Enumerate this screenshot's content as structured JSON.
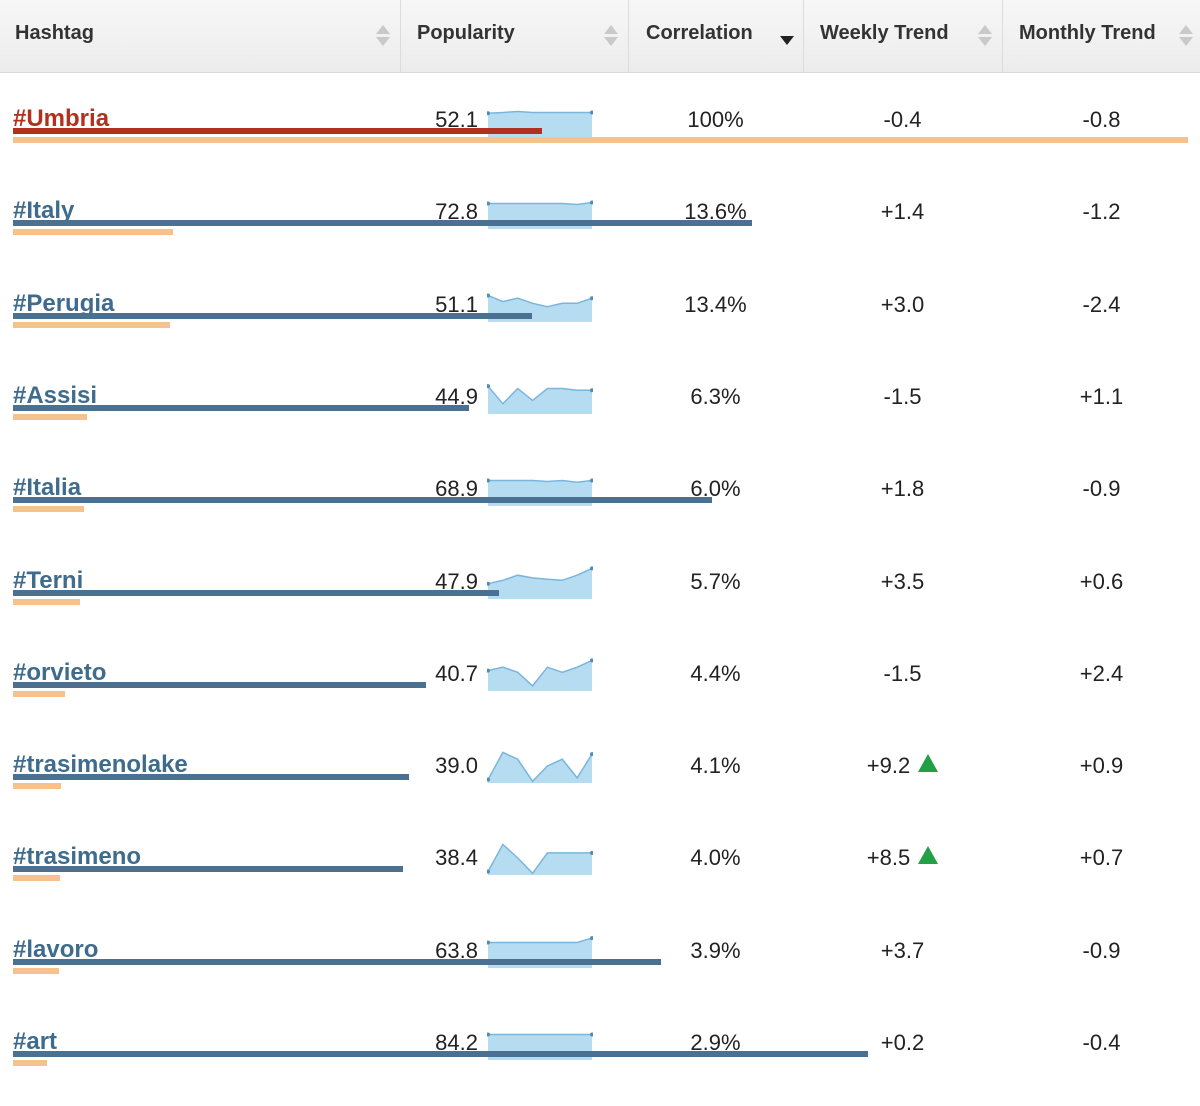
{
  "header": {
    "hashtag": "Hashtag",
    "popularity": "Popularity",
    "correlation": "Correlation",
    "weekly": "Weekly Trend",
    "monthly": "Monthly Trend"
  },
  "colors": {
    "primary_text": "#b0311d",
    "link_text": "#3f6b8c",
    "popularity_bar": "#4a7191",
    "correlation_bar": "#f5c18d",
    "spark_fill": "#b6dcf2",
    "spark_line": "#7ab6dc",
    "trend_up": "#23a045"
  },
  "rows": [
    {
      "hashtag": "#Umbria",
      "popularity": "52.1",
      "correlation": "100%",
      "weekly": "-0.4",
      "monthly": "-0.8",
      "pop_value": 52.1,
      "corr_value": 100,
      "weekly_up_icon": false,
      "primary": true,
      "spark": [
        0.3,
        0.28,
        0.25,
        0.28,
        0.28,
        0.28,
        0.28,
        0.28
      ]
    },
    {
      "hashtag": "#Italy",
      "popularity": "72.8",
      "correlation": "13.6%",
      "weekly": "+1.4",
      "monthly": "-1.2",
      "pop_value": 72.8,
      "corr_value": 13.6,
      "weekly_up_icon": false,
      "primary": false,
      "spark": [
        0.25,
        0.25,
        0.25,
        0.25,
        0.25,
        0.25,
        0.28,
        0.22
      ]
    },
    {
      "hashtag": "#Perugia",
      "popularity": "51.1",
      "correlation": "13.4%",
      "weekly": "+3.0",
      "monthly": "-2.4",
      "pop_value": 51.1,
      "corr_value": 13.4,
      "weekly_up_icon": false,
      "primary": false,
      "spark": [
        0.22,
        0.4,
        0.3,
        0.45,
        0.55,
        0.45,
        0.45,
        0.3
      ]
    },
    {
      "hashtag": "#Assisi",
      "popularity": "44.9",
      "correlation": "6.3%",
      "weekly": "-1.5",
      "monthly": "+1.1",
      "pop_value": 44.9,
      "corr_value": 6.3,
      "weekly_up_icon": false,
      "primary": false,
      "spark": [
        0.18,
        0.7,
        0.25,
        0.6,
        0.25,
        0.25,
        0.3,
        0.3
      ]
    },
    {
      "hashtag": "#Italia",
      "popularity": "68.9",
      "correlation": "6.0%",
      "weekly": "+1.8",
      "monthly": "-0.9",
      "pop_value": 68.9,
      "corr_value": 6.0,
      "weekly_up_icon": false,
      "primary": false,
      "spark": [
        0.25,
        0.25,
        0.25,
        0.25,
        0.28,
        0.25,
        0.3,
        0.25
      ]
    },
    {
      "hashtag": "#Terni",
      "popularity": "47.9",
      "correlation": "5.7%",
      "weekly": "+3.5",
      "monthly": "+0.6",
      "pop_value": 47.9,
      "corr_value": 5.7,
      "weekly_up_icon": false,
      "primary": false,
      "spark": [
        0.55,
        0.45,
        0.3,
        0.38,
        0.42,
        0.45,
        0.3,
        0.1
      ]
    },
    {
      "hashtag": "#orvieto",
      "popularity": "40.7",
      "correlation": "4.4%",
      "weekly": "-1.5",
      "monthly": "+2.4",
      "pop_value": 40.7,
      "corr_value": 4.4,
      "weekly_up_icon": false,
      "primary": false,
      "spark": [
        0.4,
        0.3,
        0.45,
        0.85,
        0.3,
        0.45,
        0.3,
        0.1
      ]
    },
    {
      "hashtag": "#trasimenolake",
      "popularity": "39.0",
      "correlation": "4.1%",
      "weekly": "+9.2",
      "monthly": "+0.9",
      "pop_value": 39.0,
      "corr_value": 4.1,
      "weekly_up_icon": true,
      "primary": false,
      "spark": [
        0.9,
        0.1,
        0.3,
        0.95,
        0.5,
        0.3,
        0.85,
        0.15
      ]
    },
    {
      "hashtag": "#trasimeno",
      "popularity": "38.4",
      "correlation": "4.0%",
      "weekly": "+8.5",
      "monthly": "+0.7",
      "pop_value": 38.4,
      "corr_value": 4.0,
      "weekly_up_icon": true,
      "primary": false,
      "spark": [
        0.9,
        0.1,
        0.5,
        0.95,
        0.35,
        0.35,
        0.35,
        0.35
      ]
    },
    {
      "hashtag": "#lavoro",
      "popularity": "63.8",
      "correlation": "3.9%",
      "weekly": "+3.7",
      "monthly": "-0.9",
      "pop_value": 63.8,
      "corr_value": 3.9,
      "weekly_up_icon": false,
      "primary": false,
      "spark": [
        0.25,
        0.25,
        0.25,
        0.25,
        0.25,
        0.25,
        0.25,
        0.12
      ]
    },
    {
      "hashtag": "#art",
      "popularity": "84.2",
      "correlation": "2.9%",
      "weekly": "+0.2",
      "monthly": "-0.4",
      "pop_value": 84.2,
      "corr_value": 2.9,
      "weekly_up_icon": false,
      "primary": false,
      "spark": [
        0.25,
        0.25,
        0.25,
        0.25,
        0.25,
        0.25,
        0.25,
        0.25
      ]
    }
  ]
}
